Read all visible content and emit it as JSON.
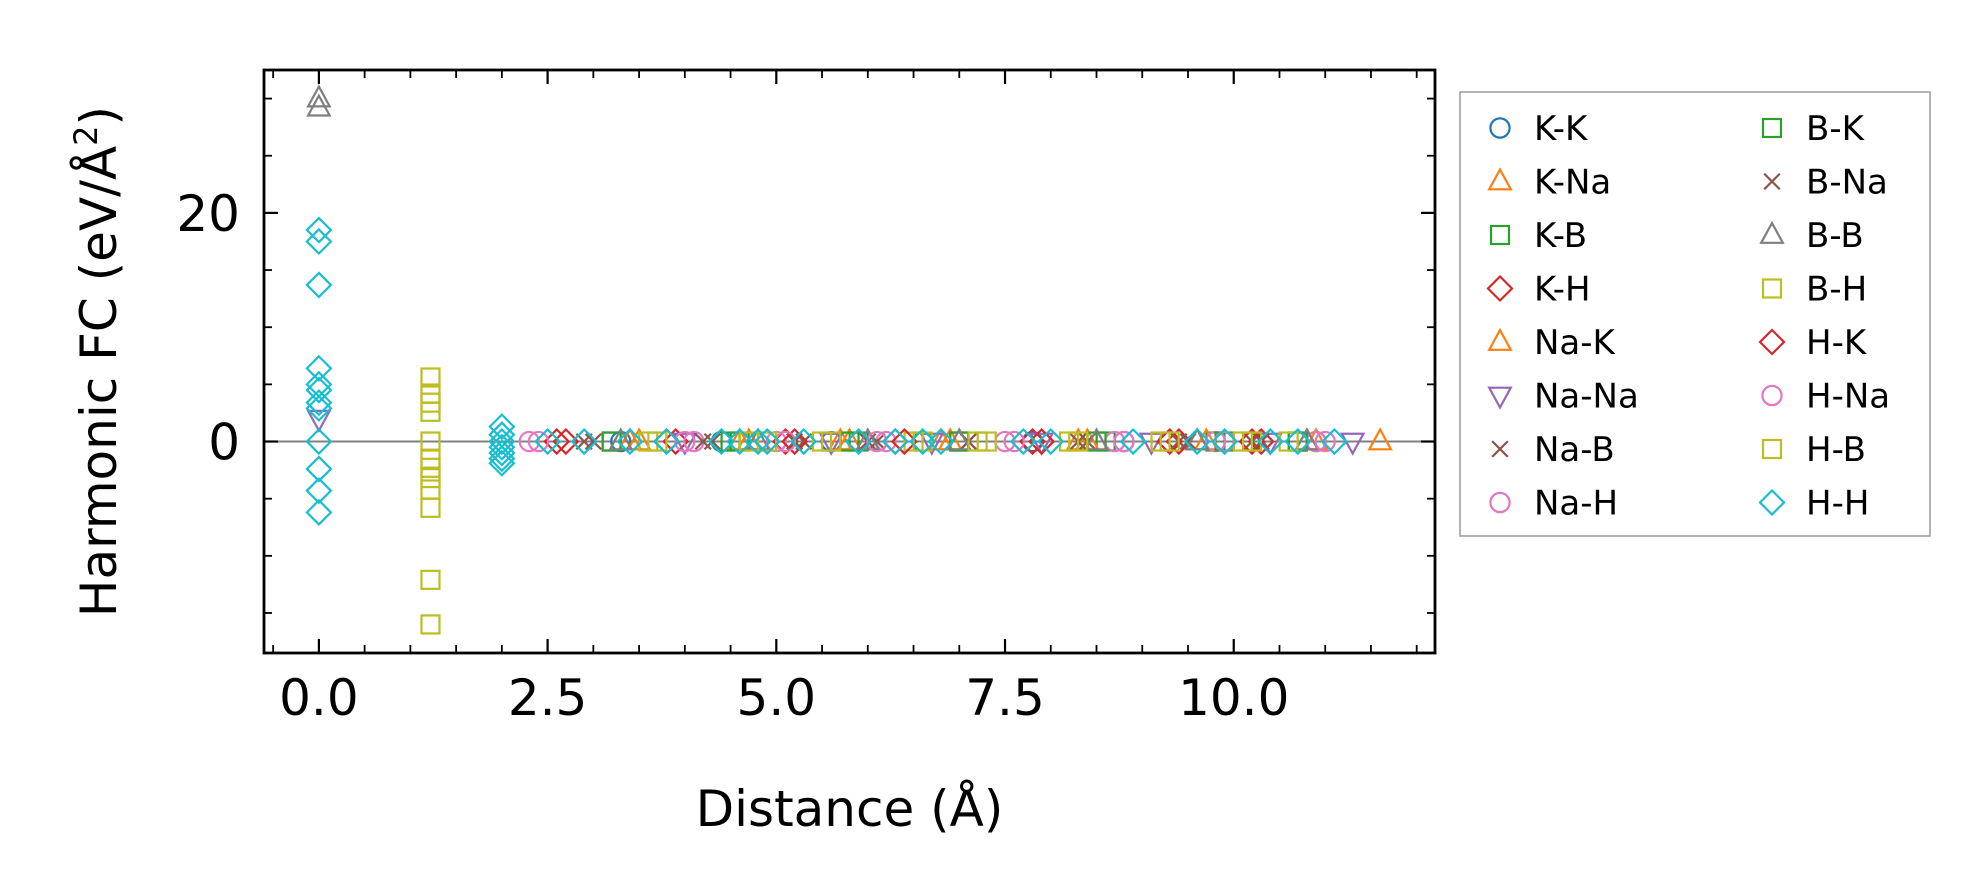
{
  "chart_data": {
    "type": "scatter",
    "title": "",
    "xlabel": "Distance (Å)",
    "ylabel": "Harmonic FC (eV/Å²)",
    "ylabel_main": "Harmonic FC (eV/Å",
    "ylabel_sup": "2",
    "ylabel_end": ")",
    "xlim": [
      -0.6,
      12.2
    ],
    "ylim": [
      -18.5,
      32.5
    ],
    "xticks": [
      0.0,
      2.5,
      5.0,
      7.5,
      10.0
    ],
    "xtick_labels": [
      "0.0",
      "2.5",
      "5.0",
      "7.5",
      "10.0"
    ],
    "yticks": [
      0,
      20
    ],
    "ytick_labels": [
      "0",
      "20"
    ],
    "zero_line": 0,
    "grid": false,
    "legend_position": "outside-right",
    "series": [
      {
        "name": "K-K",
        "marker": "circle",
        "color": "#1f77b4",
        "x": [
          3.3,
          4.4,
          5.6,
          6.6,
          7.8,
          8.8,
          9.9,
          10.9
        ],
        "y": [
          0,
          0,
          0,
          0,
          0,
          0,
          0,
          0
        ]
      },
      {
        "name": "K-Na",
        "marker": "triangle-up",
        "color": "#ff7f0e",
        "x": [
          3.4,
          4.6,
          5.8,
          6.9,
          8.3,
          9.6,
          10.8,
          11.6
        ],
        "y": [
          0,
          0,
          0,
          0,
          0,
          0,
          0,
          0
        ]
      },
      {
        "name": "K-B",
        "marker": "square",
        "color": "#2ca02c",
        "x": [
          3.2,
          4.5,
          5.9,
          7.0,
          8.6,
          9.8,
          10.7
        ],
        "y": [
          0,
          0,
          0,
          0,
          0,
          0,
          0
        ]
      },
      {
        "name": "K-H",
        "marker": "diamond",
        "color": "#d62728",
        "x": [
          2.6,
          3.9,
          5.1,
          6.3,
          7.8,
          9.4,
          10.3
        ],
        "y": [
          0,
          0,
          0,
          0,
          0,
          0,
          0
        ]
      },
      {
        "name": "Na-K",
        "marker": "triangle-up",
        "color": "#ff7f0e",
        "x": [
          3.5,
          4.7,
          5.7,
          6.8,
          8.4,
          9.7,
          10.9
        ],
        "y": [
          0,
          0,
          0,
          0,
          0,
          0,
          0
        ]
      },
      {
        "name": "Na-Na",
        "marker": "triangle-down",
        "color": "#9467bd",
        "x": [
          0.0,
          4.0,
          5.6,
          6.7,
          7.9,
          9.1,
          10.4,
          11.3
        ],
        "y": [
          2.0,
          0,
          0,
          0,
          0,
          0,
          0,
          0
        ]
      },
      {
        "name": "Na-B",
        "marker": "x",
        "color": "#8c564b",
        "x": [
          2.9,
          4.3,
          5.3,
          6.0,
          7.1,
          8.4,
          9.5,
          10.3
        ],
        "y": [
          0,
          0,
          0,
          0,
          0,
          0,
          0,
          0
        ]
      },
      {
        "name": "Na-H",
        "marker": "circle",
        "color": "#e377c2",
        "x": [
          2.3,
          4.1,
          5.0,
          6.2,
          7.5,
          8.7,
          9.8,
          10.9
        ],
        "y": [
          0,
          0,
          0,
          0,
          0,
          0,
          0,
          0
        ]
      },
      {
        "name": "B-K",
        "marker": "square",
        "color": "#2ca02c",
        "x": [
          3.2,
          4.6,
          5.8,
          7.0,
          8.5,
          9.9,
          10.7
        ],
        "y": [
          0,
          0,
          0,
          0,
          0,
          0,
          0
        ]
      },
      {
        "name": "B-Na",
        "marker": "x",
        "color": "#8c564b",
        "x": [
          3.0,
          4.2,
          5.2,
          6.1,
          7.1,
          8.3,
          9.4,
          10.2
        ],
        "y": [
          0,
          0,
          0,
          0,
          0,
          0,
          0,
          0
        ]
      },
      {
        "name": "B-B",
        "marker": "triangle-up",
        "color": "#7f7f7f",
        "x": [
          0.0,
          0.0,
          3.3,
          4.8,
          6.0,
          7.0,
          8.5,
          9.6,
          10.8
        ],
        "y": [
          30.0,
          29.2,
          0,
          0,
          0,
          0,
          0,
          0,
          0
        ]
      },
      {
        "name": "B-H",
        "marker": "square",
        "color": "#bcbd22",
        "x": [
          1.22,
          1.22,
          1.22,
          1.22,
          1.22,
          1.22,
          1.22,
          1.22,
          1.22,
          3.6,
          4.7,
          5.5,
          6.5,
          7.2,
          8.2,
          9.2,
          10.1,
          10.6
        ],
        "y": [
          5.6,
          4.2,
          2.6,
          0.0,
          -2.3,
          -4.2,
          -5.8,
          -12.1,
          -16.0,
          0,
          0,
          0,
          0,
          0,
          0,
          0,
          0,
          0
        ]
      },
      {
        "name": "H-K",
        "marker": "diamond",
        "color": "#d62728",
        "x": [
          2.7,
          3.8,
          5.2,
          6.4,
          7.9,
          9.3,
          10.2
        ],
        "y": [
          0,
          0,
          0,
          0,
          0,
          0,
          0
        ]
      },
      {
        "name": "H-Na",
        "marker": "circle",
        "color": "#e377c2",
        "x": [
          2.4,
          4.0,
          5.1,
          6.1,
          7.6,
          8.8,
          9.9,
          11.0
        ],
        "y": [
          0,
          0,
          0,
          0,
          0,
          0,
          0,
          0
        ]
      },
      {
        "name": "H-B",
        "marker": "square",
        "color": "#bcbd22",
        "x": [
          1.22,
          1.22,
          1.22,
          3.7,
          4.9,
          5.6,
          6.6,
          7.3,
          8.3,
          9.3,
          10.2
        ],
        "y": [
          3.4,
          -1.5,
          -3.2,
          0,
          0,
          0,
          0,
          0,
          0,
          0,
          0
        ]
      },
      {
        "name": "H-H",
        "marker": "diamond",
        "color": "#17becf",
        "x": [
          0.0,
          0.0,
          0.0,
          0.0,
          0.0,
          0.0,
          0.0,
          0.0,
          0.0,
          0.0,
          0.0,
          0.0,
          2.0,
          2.0,
          2.0,
          2.0,
          2.0,
          2.0,
          2.0,
          2.5,
          2.9,
          3.4,
          3.8,
          4.4,
          4.6,
          4.8,
          4.9,
          5.3,
          5.9,
          6.3,
          6.6,
          6.8,
          7.7,
          8.0,
          8.9,
          9.6,
          9.9,
          10.4,
          10.7,
          11.1
        ],
        "y": [
          18.5,
          17.5,
          13.7,
          6.4,
          5.0,
          4.5,
          3.4,
          2.9,
          0.0,
          -2.4,
          -4.3,
          -6.2,
          1.3,
          0.6,
          0.0,
          -0.5,
          -1.0,
          -1.5,
          -1.9,
          0,
          0,
          0,
          0,
          0,
          0,
          0,
          0,
          0,
          0,
          0,
          0,
          0,
          0,
          0,
          0,
          0,
          0,
          0,
          0,
          0
        ]
      }
    ]
  }
}
